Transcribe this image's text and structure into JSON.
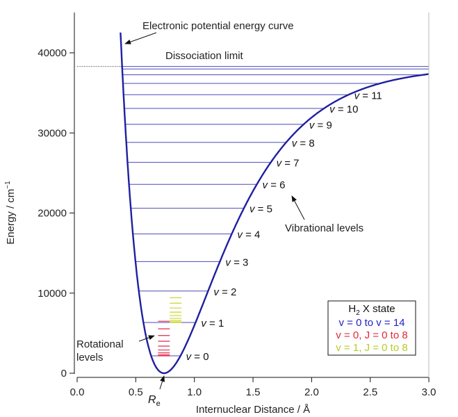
{
  "chart_data": {
    "type": "line",
    "xlabel": "Internuclear Distance / Å",
    "ylabel": "Energy / cm",
    "ylabel_superscript": "−1",
    "xlim": [
      0,
      3.0
    ],
    "ylim": [
      0,
      45000
    ],
    "x_ticks": [
      "0.0",
      "0.5",
      "1.0",
      "1.5",
      "2.0",
      "2.5",
      "3.0"
    ],
    "x_tick_values": [
      0,
      0.5,
      1.0,
      1.5,
      2.0,
      2.5,
      3.0
    ],
    "y_ticks": [
      "0",
      "10000",
      "20000",
      "30000",
      "40000"
    ],
    "y_tick_values": [
      0,
      10000,
      20000,
      30000,
      40000
    ],
    "grid": false,
    "curve": {
      "model": "Morse",
      "Re": 0.741,
      "De": 38297,
      "a": 1.94,
      "color": "#1f1fa0"
    },
    "dissociation_limit": 38297,
    "vibrational_levels": [
      2170,
      6330,
      10260,
      13940,
      17390,
      20600,
      23580,
      26320,
      28820,
      31070,
      33060,
      34770,
      36180,
      37260,
      37980
    ],
    "vibrational_labels": [
      "v = 0",
      "v = 1",
      "v = 2",
      "v = 3",
      "v = 4",
      "v = 5",
      "v = 6",
      "v = 7",
      "v = 8",
      "v = 9",
      "v = 10",
      "v = 11"
    ],
    "rotational_v0": {
      "energies": [
        2170,
        2290,
        2535,
        2900,
        3385,
        3990,
        4710,
        5545,
        6490
      ],
      "x_range": [
        0.69,
        0.79
      ],
      "color": "#e0284a"
    },
    "rotational_v1": {
      "energies": [
        6330,
        6415,
        6590,
        6850,
        7195,
        7625,
        8140,
        8740,
        9420
      ],
      "x_range": [
        0.79,
        0.89
      ],
      "color": "#c8d42a"
    },
    "level_color": "#4a4ab8",
    "annotations": {
      "curve": "Electronic potential energy curve",
      "dissociation": "Dissociation limit",
      "vibrational": "Vibrational levels",
      "rotational_line1": "Rotational",
      "rotational_line2": "levels",
      "re_main": "R",
      "re_sub": "e"
    },
    "legend": {
      "title_pre": "H",
      "title_sub": "2",
      "title_post": " X state",
      "entries": [
        "v = 0 to v = 14",
        "v = 0, J = 0 to 8",
        "v = 1, J = 0 to 8"
      ],
      "colors": [
        "#1f1fc8",
        "#e0283a",
        "#b8cc22"
      ],
      "placement": "bottom-right"
    }
  }
}
